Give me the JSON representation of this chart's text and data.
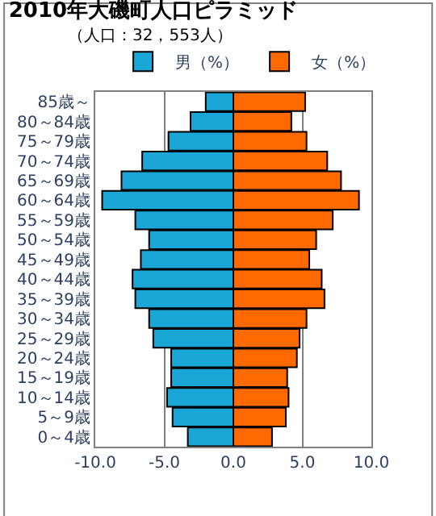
{
  "chart_data": {
    "type": "bar",
    "orientation": "horizontal",
    "title": "2010年大磯町人口ピラミッド",
    "subtitle": "（人口：32，553人）",
    "categories": [
      "85歳～",
      "80～84歳",
      "75～79歳",
      "70～74歳",
      "65～69歳",
      "60～64歳",
      "55～59歳",
      "50～54歳",
      "45～49歳",
      "40～44歳",
      "35～39歳",
      "30～34歳",
      "25～29歳",
      "20～24歳",
      "15～19歳",
      "10～14歳",
      "5～9歳",
      "0～4歳"
    ],
    "series": [
      {
        "name": "男（%）",
        "color": "#1aa6d6",
        "values": [
          -2.0,
          -3.1,
          -4.7,
          -6.6,
          -8.1,
          -9.5,
          -7.1,
          -6.1,
          -6.7,
          -7.3,
          -7.1,
          -6.1,
          -5.8,
          -4.5,
          -4.5,
          -4.8,
          -4.4,
          -3.3
        ]
      },
      {
        "name": "女（%）",
        "color": "#ff6a00",
        "values": [
          5.2,
          4.2,
          5.3,
          6.8,
          7.8,
          9.1,
          7.2,
          6.0,
          5.5,
          6.4,
          6.6,
          5.3,
          4.8,
          4.6,
          3.9,
          4.0,
          3.8,
          2.8
        ]
      }
    ],
    "xlim": [
      -10,
      10
    ],
    "xticks": [
      {
        "value": -10,
        "label": "-10.0"
      },
      {
        "value": -5,
        "label": "-5.0"
      },
      {
        "value": 0,
        "label": "0.0"
      },
      {
        "value": 5,
        "label": "5.0"
      },
      {
        "value": 10,
        "label": "10.0"
      }
    ],
    "grid": "x",
    "legend": "top right",
    "stacked": true
  }
}
